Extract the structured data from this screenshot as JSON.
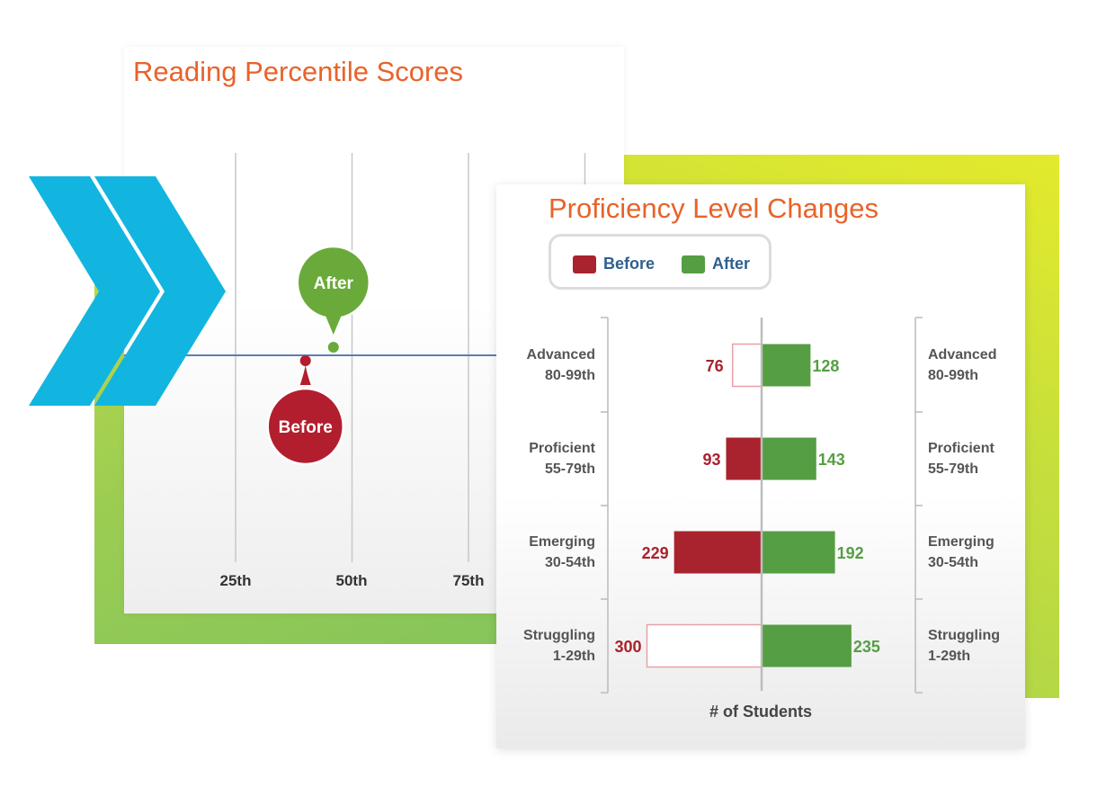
{
  "percentile_chart": {
    "title": "Reading Percentile Scores",
    "ticks": [
      "25th",
      "50th",
      "75th"
    ],
    "markers": [
      {
        "label": "Before",
        "color": "#b21e2e"
      },
      {
        "label": "After",
        "color": "#6aaa3a"
      }
    ]
  },
  "proficiency_chart": {
    "title": "Proficiency Level Changes",
    "legend": [
      {
        "label": "Before",
        "color": "#a8232d"
      },
      {
        "label": "After",
        "color": "#559e43"
      }
    ],
    "levels": [
      {
        "name": "Advanced",
        "range": "80-99th"
      },
      {
        "name": "Proficient",
        "range": "55-79th"
      },
      {
        "name": "Emerging",
        "range": "30-54th"
      },
      {
        "name": "Struggling",
        "range": "1-29th"
      }
    ],
    "xlabel": "# of Students"
  },
  "chart_data": [
    {
      "type": "scatter",
      "title": "Reading Percentile Scores",
      "x_ticks": [
        "25th",
        "50th",
        "75th"
      ],
      "points": [
        {
          "series": "Before",
          "x": 40
        },
        {
          "series": "After",
          "x": 46
        }
      ]
    },
    {
      "type": "bar",
      "title": "Proficiency Level Changes",
      "xlabel": "# of Students",
      "categories": [
        "Advanced 80-99th",
        "Proficient 55-79th",
        "Emerging 30-54th",
        "Struggling 1-29th"
      ],
      "series": [
        {
          "name": "Before",
          "values": [
            76,
            93,
            229,
            300
          ]
        },
        {
          "name": "After",
          "values": [
            128,
            143,
            192,
            235
          ]
        }
      ],
      "legend": "top-left"
    }
  ]
}
